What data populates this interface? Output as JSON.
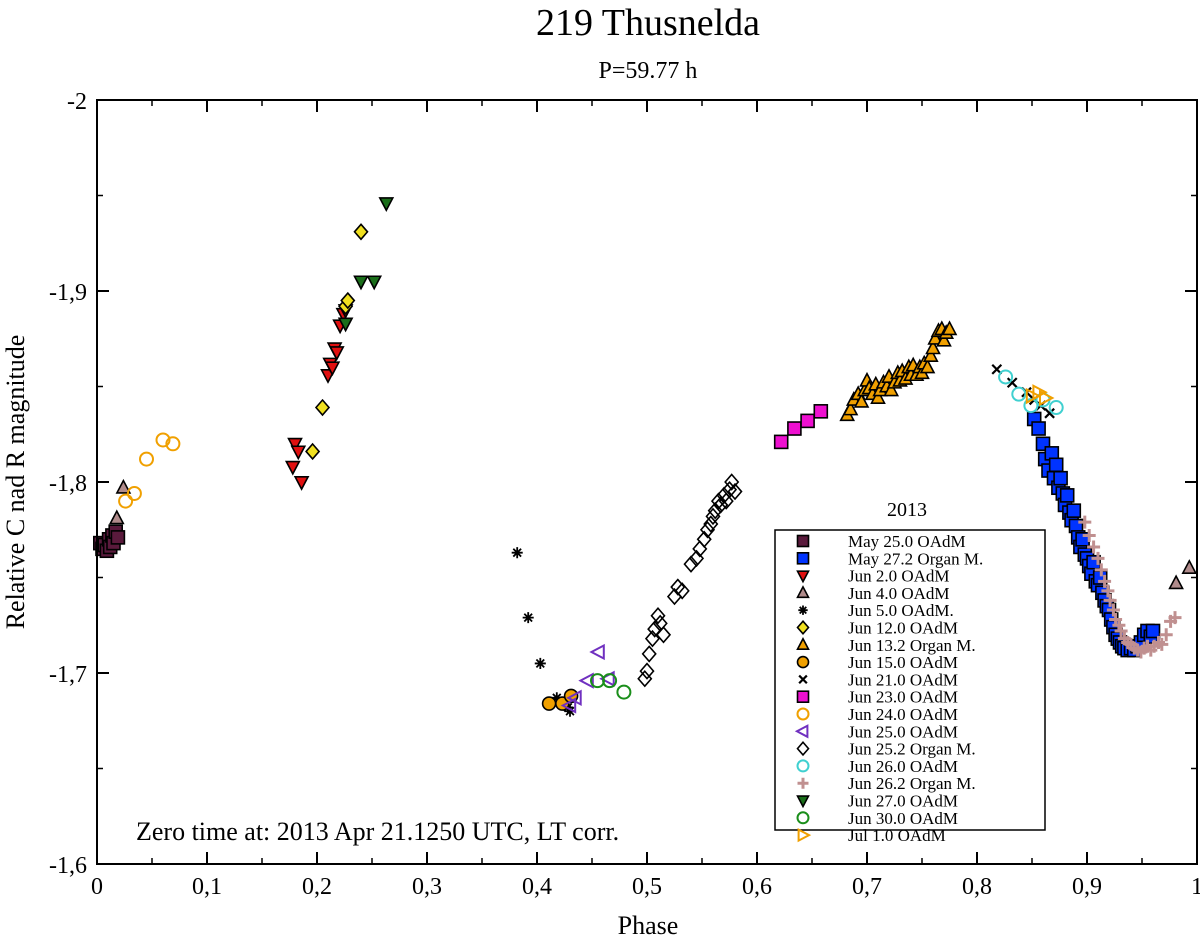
{
  "chart_data": {
    "type": "scatter",
    "title": "219 Thusnelda",
    "subtitle": "P=59.77 h",
    "xlabel": "Phase",
    "ylabel": "Relative C nad R magnitude",
    "xlim": [
      0,
      1
    ],
    "ylim": [
      -2.0,
      -1.6
    ],
    "y_inverted": true,
    "x_ticks": [
      0,
      0.1,
      0.2,
      0.3,
      0.4,
      0.5,
      0.6,
      0.7,
      0.8,
      0.9,
      1
    ],
    "x_tick_labels": [
      "0",
      "0,1",
      "0,2",
      "0,3",
      "0,4",
      "0,5",
      "0,6",
      "0,7",
      "0,8",
      "0,9",
      "1"
    ],
    "y_ticks": [
      -2.0,
      -1.9,
      -1.8,
      -1.7,
      -1.6
    ],
    "y_tick_labels": [
      "-2",
      "-1,9",
      "-1,8",
      "-1,7",
      "-1,6"
    ],
    "annotation": "Zero time at: 2013 Apr 21.1250 UTC, LT corr.",
    "legend_title": "2013",
    "legend_position": "bottom-right",
    "grid": false,
    "series": [
      {
        "name": "May 25.0 OAdM",
        "marker": "square",
        "color": "#5a1a3c",
        "filled": true,
        "points": [
          [
            0.003,
            -1.768
          ],
          [
            0.005,
            -1.765
          ],
          [
            0.007,
            -1.767
          ],
          [
            0.009,
            -1.764
          ],
          [
            0.011,
            -1.77
          ],
          [
            0.012,
            -1.766
          ],
          [
            0.014,
            -1.772
          ],
          [
            0.015,
            -1.768
          ],
          [
            0.017,
            -1.774
          ],
          [
            0.019,
            -1.771
          ]
        ]
      },
      {
        "name": "May 27.2 Organ M.",
        "marker": "square",
        "color": "#0033ff",
        "filled": true,
        "points": [
          [
            0.852,
            -1.833
          ],
          [
            0.856,
            -1.828
          ],
          [
            0.86,
            -1.82
          ],
          [
            0.862,
            -1.812
          ],
          [
            0.865,
            -1.806
          ],
          [
            0.868,
            -1.815
          ],
          [
            0.87,
            -1.802
          ],
          [
            0.872,
            -1.809
          ],
          [
            0.874,
            -1.797
          ],
          [
            0.876,
            -1.802
          ],
          [
            0.878,
            -1.794
          ],
          [
            0.88,
            -1.788
          ],
          [
            0.882,
            -1.793
          ],
          [
            0.884,
            -1.784
          ],
          [
            0.886,
            -1.78
          ],
          [
            0.888,
            -1.785
          ],
          [
            0.89,
            -1.777
          ],
          [
            0.892,
            -1.771
          ],
          [
            0.894,
            -1.766
          ],
          [
            0.896,
            -1.77
          ],
          [
            0.898,
            -1.762
          ],
          [
            0.9,
            -1.76
          ],
          [
            0.902,
            -1.756
          ],
          [
            0.904,
            -1.752
          ],
          [
            0.906,
            -1.758
          ],
          [
            0.908,
            -1.748
          ],
          [
            0.91,
            -1.746
          ],
          [
            0.912,
            -1.75
          ],
          [
            0.914,
            -1.742
          ],
          [
            0.916,
            -1.738
          ],
          [
            0.918,
            -1.735
          ],
          [
            0.92,
            -1.733
          ],
          [
            0.922,
            -1.728
          ],
          [
            0.924,
            -1.724
          ],
          [
            0.926,
            -1.72
          ],
          [
            0.928,
            -1.718
          ],
          [
            0.93,
            -1.716
          ],
          [
            0.932,
            -1.714
          ],
          [
            0.934,
            -1.713
          ],
          [
            0.937,
            -1.712
          ],
          [
            0.94,
            -1.713
          ],
          [
            0.943,
            -1.712
          ],
          [
            0.946,
            -1.714
          ],
          [
            0.949,
            -1.716
          ],
          [
            0.952,
            -1.72
          ],
          [
            0.955,
            -1.722
          ],
          [
            0.958,
            -1.719
          ],
          [
            0.96,
            -1.722
          ]
        ]
      },
      {
        "name": "Jun 2.0 OAdM",
        "marker": "triangle-down",
        "color": "#e01010",
        "filled": true,
        "points": [
          [
            0.178,
            -1.808
          ],
          [
            0.18,
            -1.82
          ],
          [
            0.183,
            -1.816
          ],
          [
            0.186,
            -1.8
          ],
          [
            0.21,
            -1.856
          ],
          [
            0.212,
            -1.862
          ],
          [
            0.214,
            -1.86
          ],
          [
            0.216,
            -1.87
          ],
          [
            0.218,
            -1.868
          ],
          [
            0.221,
            -1.882
          ],
          [
            0.224,
            -1.888
          ],
          [
            0.226,
            -1.89
          ]
        ]
      },
      {
        "name": "Jun 4.0 OAdM",
        "marker": "triangle-up",
        "color": "#b08b8b",
        "filled": true,
        "points": [
          [
            0.018,
            -1.781
          ],
          [
            0.024,
            -1.797
          ],
          [
            0.981,
            -1.747
          ],
          [
            0.993,
            -1.755
          ]
        ]
      },
      {
        "name": "Jun 5.0 OAdM.",
        "marker": "star",
        "color": "#000000",
        "filled": true,
        "points": [
          [
            0.382,
            -1.763
          ],
          [
            0.392,
            -1.729
          ],
          [
            0.403,
            -1.705
          ],
          [
            0.418,
            -1.687
          ],
          [
            0.428,
            -1.682
          ],
          [
            0.43,
            -1.68
          ]
        ]
      },
      {
        "name": "Jun 12.0 OAdM",
        "marker": "diamond",
        "color": "#f0e020",
        "filled": true,
        "points": [
          [
            0.196,
            -1.816
          ],
          [
            0.205,
            -1.839
          ],
          [
            0.226,
            -1.892
          ],
          [
            0.228,
            -1.895
          ],
          [
            0.24,
            -1.931
          ]
        ]
      },
      {
        "name": "Jun 13.2 Organ M.",
        "marker": "triangle-up",
        "color": "#f0a000",
        "filled": true,
        "points": [
          [
            0.682,
            -1.835
          ],
          [
            0.685,
            -1.838
          ],
          [
            0.688,
            -1.843
          ],
          [
            0.692,
            -1.846
          ],
          [
            0.695,
            -1.842
          ],
          [
            0.698,
            -1.848
          ],
          [
            0.7,
            -1.853
          ],
          [
            0.702,
            -1.849
          ],
          [
            0.705,
            -1.846
          ],
          [
            0.708,
            -1.851
          ],
          [
            0.71,
            -1.844
          ],
          [
            0.712,
            -1.848
          ],
          [
            0.715,
            -1.852
          ],
          [
            0.718,
            -1.85
          ],
          [
            0.72,
            -1.855
          ],
          [
            0.722,
            -1.848
          ],
          [
            0.725,
            -1.852
          ],
          [
            0.728,
            -1.857
          ],
          [
            0.73,
            -1.853
          ],
          [
            0.732,
            -1.858
          ],
          [
            0.735,
            -1.854
          ],
          [
            0.738,
            -1.86
          ],
          [
            0.74,
            -1.856
          ],
          [
            0.742,
            -1.861
          ],
          [
            0.745,
            -1.856
          ],
          [
            0.748,
            -1.86
          ],
          [
            0.75,
            -1.857
          ],
          [
            0.752,
            -1.862
          ],
          [
            0.755,
            -1.86
          ],
          [
            0.758,
            -1.866
          ],
          [
            0.76,
            -1.87
          ],
          [
            0.762,
            -1.875
          ],
          [
            0.765,
            -1.879
          ],
          [
            0.768,
            -1.88
          ],
          [
            0.77,
            -1.874
          ],
          [
            0.772,
            -1.878
          ],
          [
            0.775,
            -1.88
          ]
        ]
      },
      {
        "name": "Jun 15.0 OAdM",
        "marker": "circle",
        "color": "#f0a000",
        "filled": true,
        "points": [
          [
            0.411,
            -1.684
          ],
          [
            0.423,
            -1.684
          ],
          [
            0.431,
            -1.688
          ]
        ]
      },
      {
        "name": "Jun 21.0 OAdM",
        "marker": "cross",
        "color": "#000000",
        "filled": true,
        "points": [
          [
            0.818,
            -1.859
          ],
          [
            0.832,
            -1.852
          ],
          [
            0.845,
            -1.847
          ],
          [
            0.852,
            -1.843
          ],
          [
            0.858,
            -1.84
          ],
          [
            0.866,
            -1.836
          ]
        ]
      },
      {
        "name": "Jun 23.0 OAdM",
        "marker": "square",
        "color": "#ee10d0",
        "filled": true,
        "points": [
          [
            0.622,
            -1.821
          ],
          [
            0.634,
            -1.828
          ],
          [
            0.646,
            -1.832
          ],
          [
            0.658,
            -1.837
          ]
        ]
      },
      {
        "name": "Jun 24.0 OAdM",
        "marker": "circle",
        "color": "#f0a000",
        "filled": false,
        "points": [
          [
            0.026,
            -1.79
          ],
          [
            0.034,
            -1.794
          ],
          [
            0.045,
            -1.812
          ],
          [
            0.06,
            -1.822
          ],
          [
            0.069,
            -1.82
          ]
        ]
      },
      {
        "name": "Jun 25.0 OAdM",
        "marker": "triangle-left",
        "color": "#7030c0",
        "filled": false,
        "points": [
          [
            0.43,
            -1.683
          ],
          [
            0.435,
            -1.687
          ],
          [
            0.446,
            -1.696
          ],
          [
            0.456,
            -1.711
          ],
          [
            0.465,
            -1.697
          ]
        ]
      },
      {
        "name": "Jun 25.2 Organ M.",
        "marker": "diamond",
        "color": "#000000",
        "filled": false,
        "points": [
          [
            0.498,
            -1.697
          ],
          [
            0.5,
            -1.701
          ],
          [
            0.502,
            -1.71
          ],
          [
            0.505,
            -1.718
          ],
          [
            0.507,
            -1.723
          ],
          [
            0.51,
            -1.73
          ],
          [
            0.512,
            -1.726
          ],
          [
            0.515,
            -1.72
          ],
          [
            0.525,
            -1.74
          ],
          [
            0.528,
            -1.745
          ],
          [
            0.532,
            -1.743
          ],
          [
            0.54,
            -1.757
          ],
          [
            0.545,
            -1.76
          ],
          [
            0.548,
            -1.765
          ],
          [
            0.552,
            -1.77
          ],
          [
            0.555,
            -1.775
          ],
          [
            0.558,
            -1.778
          ],
          [
            0.56,
            -1.782
          ],
          [
            0.562,
            -1.785
          ],
          [
            0.565,
            -1.79
          ],
          [
            0.567,
            -1.788
          ],
          [
            0.57,
            -1.793
          ],
          [
            0.572,
            -1.79
          ],
          [
            0.575,
            -1.796
          ],
          [
            0.577,
            -1.8
          ],
          [
            0.58,
            -1.795
          ]
        ]
      },
      {
        "name": "Jun 26.0 OAdM",
        "marker": "circle",
        "color": "#40d0d0",
        "filled": false,
        "points": [
          [
            0.826,
            -1.855
          ],
          [
            0.838,
            -1.846
          ],
          [
            0.849,
            -1.84
          ],
          [
            0.86,
            -1.843
          ],
          [
            0.872,
            -1.839
          ]
        ]
      },
      {
        "name": "Jun 26.2 Organ M.",
        "marker": "plus",
        "color": "#c09090",
        "filled": true,
        "points": [
          [
            0.898,
            -1.779
          ],
          [
            0.902,
            -1.772
          ],
          [
            0.906,
            -1.766
          ],
          [
            0.91,
            -1.76
          ],
          [
            0.913,
            -1.754
          ],
          [
            0.916,
            -1.748
          ],
          [
            0.919,
            -1.743
          ],
          [
            0.921,
            -1.738
          ],
          [
            0.924,
            -1.733
          ],
          [
            0.926,
            -1.728
          ],
          [
            0.929,
            -1.725
          ],
          [
            0.931,
            -1.722
          ],
          [
            0.934,
            -1.718
          ],
          [
            0.937,
            -1.716
          ],
          [
            0.94,
            -1.715
          ],
          [
            0.943,
            -1.713
          ],
          [
            0.946,
            -1.712
          ],
          [
            0.949,
            -1.711
          ],
          [
            0.952,
            -1.713
          ],
          [
            0.955,
            -1.714
          ],
          [
            0.958,
            -1.712
          ],
          [
            0.961,
            -1.714
          ],
          [
            0.965,
            -1.716
          ],
          [
            0.968,
            -1.715
          ],
          [
            0.972,
            -1.72
          ],
          [
            0.976,
            -1.727
          ],
          [
            0.98,
            -1.729
          ]
        ]
      },
      {
        "name": "Jun 27.0 OAdM",
        "marker": "triangle-down",
        "color": "#1a6e1a",
        "filled": true,
        "points": [
          [
            0.226,
            -1.883
          ],
          [
            0.24,
            -1.905
          ],
          [
            0.252,
            -1.905
          ],
          [
            0.263,
            -1.946
          ]
        ]
      },
      {
        "name": "Jun 30.0 OAdM",
        "marker": "circle",
        "color": "#1a8e1a",
        "filled": false,
        "points": [
          [
            0.455,
            -1.696
          ],
          [
            0.466,
            -1.696
          ],
          [
            0.479,
            -1.69
          ]
        ]
      },
      {
        "name": "Jul 1.0 OAdM",
        "marker": "triangle-right",
        "color": "#f0a000",
        "filled": false,
        "points": [
          [
            0.85,
            -1.845
          ],
          [
            0.856,
            -1.847
          ],
          [
            0.862,
            -1.844
          ]
        ]
      }
    ]
  }
}
